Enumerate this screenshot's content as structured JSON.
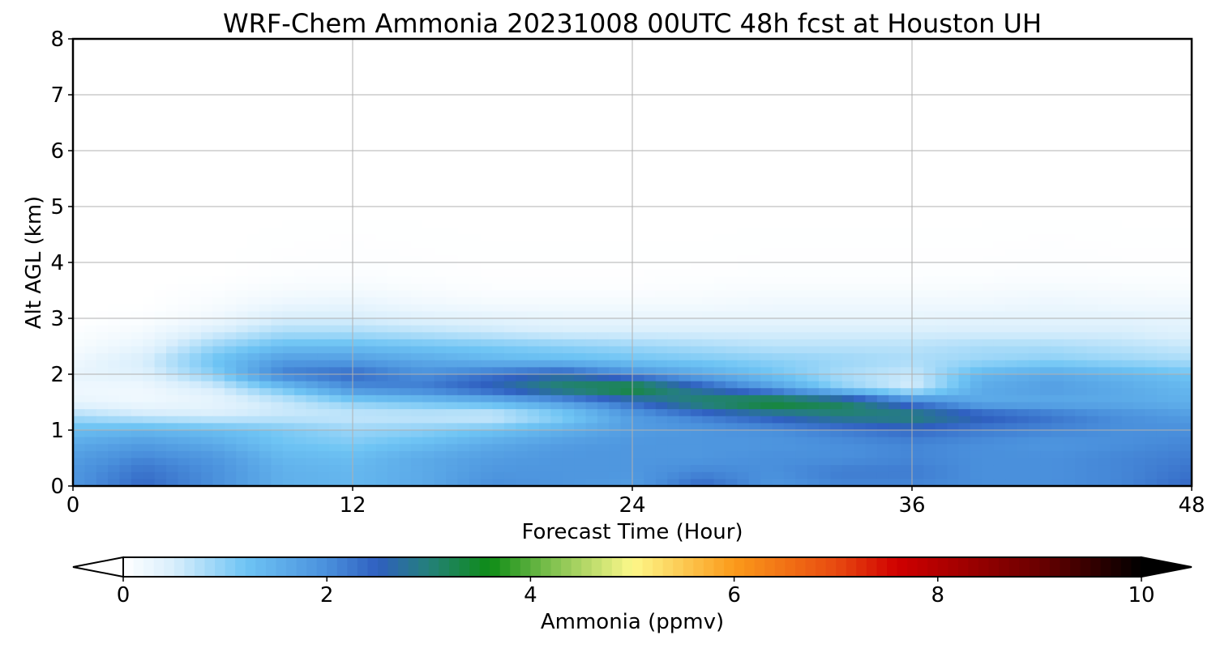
{
  "chart_data": {
    "type": "heatmap",
    "title": "WRF-Chem Ammonia  20231008 00UTC 48h fcst at Houston UH",
    "xlabel": "Forecast Time (Hour)",
    "ylabel": "Alt AGL (km)",
    "xlim": [
      0,
      48
    ],
    "ylim": [
      0,
      8
    ],
    "xticks": [
      0,
      12,
      24,
      36,
      48
    ],
    "yticks": [
      0,
      1,
      2,
      3,
      4,
      5,
      6,
      7,
      8
    ],
    "grid": true,
    "colorbar": {
      "label": "Ammonia  (ppmv)",
      "min": 0,
      "max": 10,
      "ticks": [
        0,
        2,
        4,
        6,
        8,
        10
      ],
      "extend": "both",
      "stops": [
        {
          "v": 0.0,
          "c": "#ffffff"
        },
        {
          "v": 0.5,
          "c": "#d8eefc"
        },
        {
          "v": 1.2,
          "c": "#6ec4f4"
        },
        {
          "v": 2.0,
          "c": "#4a90dc"
        },
        {
          "v": 2.5,
          "c": "#2f5fc0"
        },
        {
          "v": 3.0,
          "c": "#24807a"
        },
        {
          "v": 3.6,
          "c": "#0e8c16"
        },
        {
          "v": 4.2,
          "c": "#7ec04e"
        },
        {
          "v": 5.0,
          "c": "#fdf88a"
        },
        {
          "v": 6.0,
          "c": "#fb9a1a"
        },
        {
          "v": 7.0,
          "c": "#e84a10"
        },
        {
          "v": 7.6,
          "c": "#d00000"
        },
        {
          "v": 9.0,
          "c": "#6a0000"
        },
        {
          "v": 10.0,
          "c": "#000000"
        }
      ]
    },
    "x": [
      0,
      3,
      6,
      9,
      12,
      15,
      18,
      21,
      24,
      27,
      30,
      33,
      36,
      39,
      42,
      45,
      48
    ],
    "y": [
      0,
      0.25,
      0.5,
      0.75,
      1.0,
      1.25,
      1.5,
      1.75,
      2.0,
      2.25,
      2.5,
      2.75,
      3.0,
      3.25,
      3.5,
      3.75,
      4.0,
      5.0,
      6.0,
      7.0,
      8.0
    ],
    "z": [
      [
        1.9,
        2.4,
        2.0,
        1.5,
        1.4,
        1.6,
        2.0,
        1.9,
        1.8,
        2.4,
        1.9,
        2.1,
        2.1,
        2.0,
        2.0,
        2.1,
        2.4
      ],
      [
        1.9,
        2.3,
        2.0,
        1.5,
        1.4,
        1.6,
        1.9,
        1.9,
        1.9,
        2.1,
        2.0,
        2.2,
        2.2,
        2.0,
        2.0,
        2.1,
        2.3
      ],
      [
        1.8,
        2.1,
        1.9,
        1.4,
        1.3,
        1.6,
        1.8,
        1.9,
        1.9,
        1.9,
        2.0,
        2.0,
        2.1,
        2.0,
        2.0,
        2.1,
        2.2
      ],
      [
        1.6,
        1.8,
        1.6,
        1.2,
        1.1,
        1.3,
        1.6,
        1.8,
        1.9,
        1.9,
        1.9,
        2.0,
        2.1,
        2.0,
        1.9,
        2.0,
        2.1
      ],
      [
        1.3,
        1.4,
        1.3,
        1.1,
        0.9,
        1.0,
        1.2,
        1.5,
        1.8,
        1.9,
        2.0,
        2.2,
        2.4,
        2.2,
        2.1,
        2.0,
        2.0
      ],
      [
        0.8,
        0.6,
        0.5,
        0.6,
        0.6,
        0.6,
        0.5,
        1.0,
        1.8,
        2.2,
        2.6,
        3.0,
        3.1,
        2.6,
        2.3,
        2.0,
        1.8
      ],
      [
        0.3,
        0.2,
        0.3,
        0.6,
        1.0,
        1.2,
        1.4,
        1.8,
        2.4,
        3.2,
        3.6,
        3.2,
        2.2,
        1.6,
        1.6,
        1.6,
        1.5
      ],
      [
        0.2,
        0.2,
        0.5,
        1.2,
        2.0,
        2.2,
        2.6,
        3.2,
        3.6,
        2.6,
        1.8,
        1.0,
        0.5,
        1.6,
        1.8,
        1.6,
        1.4
      ],
      [
        0.3,
        0.4,
        1.0,
        2.2,
        2.4,
        2.0,
        2.3,
        2.6,
        2.0,
        1.6,
        1.2,
        0.8,
        0.6,
        1.4,
        1.6,
        1.4,
        1.2
      ],
      [
        0.2,
        0.5,
        1.2,
        1.8,
        1.8,
        1.6,
        1.4,
        1.3,
        1.2,
        1.1,
        1.0,
        0.9,
        0.8,
        0.9,
        1.0,
        0.9,
        0.8
      ],
      [
        0.1,
        0.3,
        0.9,
        1.3,
        1.3,
        1.2,
        1.1,
        1.0,
        0.9,
        0.8,
        0.7,
        0.7,
        0.7,
        0.8,
        0.8,
        0.7,
        0.6
      ],
      [
        0.05,
        0.15,
        0.5,
        0.8,
        0.8,
        0.7,
        0.6,
        0.5,
        0.5,
        0.5,
        0.5,
        0.5,
        0.5,
        0.5,
        0.5,
        0.5,
        0.4
      ],
      [
        0.0,
        0.05,
        0.2,
        0.5,
        0.5,
        0.4,
        0.35,
        0.3,
        0.3,
        0.3,
        0.3,
        0.3,
        0.3,
        0.35,
        0.35,
        0.35,
        0.3
      ],
      [
        0.0,
        0.0,
        0.1,
        0.25,
        0.3,
        0.2,
        0.15,
        0.15,
        0.15,
        0.15,
        0.2,
        0.2,
        0.2,
        0.2,
        0.25,
        0.2,
        0.2
      ],
      [
        0.0,
        0.0,
        0.05,
        0.12,
        0.15,
        0.1,
        0.05,
        0.05,
        0.05,
        0.08,
        0.1,
        0.1,
        0.1,
        0.12,
        0.15,
        0.12,
        0.1
      ],
      [
        0.0,
        0.0,
        0.0,
        0.05,
        0.06,
        0.04,
        0.02,
        0.02,
        0.02,
        0.03,
        0.04,
        0.04,
        0.04,
        0.05,
        0.06,
        0.05,
        0.04
      ],
      [
        0.0,
        0.0,
        0.0,
        0.02,
        0.03,
        0.02,
        0.01,
        0.01,
        0.01,
        0.01,
        0.02,
        0.02,
        0.02,
        0.02,
        0.03,
        0.02,
        0.02
      ],
      [
        0.0,
        0.0,
        0.0,
        0.0,
        0.0,
        0.0,
        0.0,
        0.0,
        0.0,
        0.0,
        0.0,
        0.0,
        0.0,
        0.0,
        0.0,
        0.0,
        0.0
      ],
      [
        0.0,
        0.0,
        0.0,
        0.0,
        0.0,
        0.0,
        0.0,
        0.0,
        0.0,
        0.0,
        0.0,
        0.0,
        0.0,
        0.0,
        0.0,
        0.0,
        0.0
      ],
      [
        0.0,
        0.0,
        0.0,
        0.0,
        0.0,
        0.0,
        0.0,
        0.0,
        0.0,
        0.0,
        0.0,
        0.0,
        0.0,
        0.0,
        0.0,
        0.0,
        0.0
      ],
      [
        0.0,
        0.0,
        0.0,
        0.0,
        0.0,
        0.0,
        0.0,
        0.0,
        0.0,
        0.0,
        0.0,
        0.0,
        0.0,
        0.0,
        0.0,
        0.0,
        0.0
      ]
    ]
  }
}
